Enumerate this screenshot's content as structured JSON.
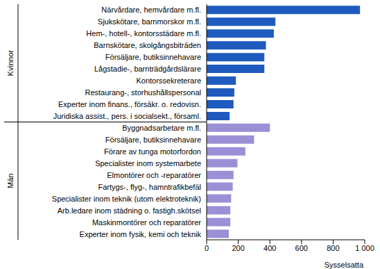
{
  "chart_data": {
    "type": "bar",
    "orientation": "horizontal",
    "stacked": true,
    "x_label": "Sysselsatta",
    "categories": [
      "Närvårdare, hemvårdare m.fl.",
      "Sjukskötare, barnmorskor m.fl.",
      "Hem-, hotell-, kontorsstädare m.fl.",
      "Barnskötare, skolgångsbiträden",
      "Försäljare, butiksinnehavare",
      "Lågstadie-, barnträdgårdslärare",
      "Kontorssekreterare",
      "Restaurang-, storhushållspersonal",
      "Experter inom finans., försäkr. o. redovisn.",
      "Juridiska assist., pers. i socialsekt., församl.",
      "Byggnadsarbetare m.fl.",
      "Försäljare, butiksinnehavare",
      "Förare av tunga motorfordon",
      "Specialister inom systemarbete",
      "Elmontörer och -reparatörer",
      "Fartygs-, flyg-, hamntrafikbefäl",
      "Specialister inom teknik (utom elektroteknik)",
      "Arb.ledare inom städning o. fastigh.skötsel",
      "Maskinmontörer och reparatörer",
      "Experter inom fysik, kemi och teknik"
    ],
    "series": [
      {
        "name": "Kvinnor",
        "color": "#1f5bbf",
        "values": [
          970,
          435,
          425,
          375,
          365,
          365,
          185,
          175,
          170,
          145,
          null,
          null,
          null,
          null,
          null,
          null,
          null,
          null,
          null,
          null
        ]
      },
      {
        "name": "Män",
        "color": "#9b8fd6",
        "values": [
          null,
          null,
          null,
          null,
          null,
          null,
          null,
          null,
          null,
          null,
          400,
          300,
          245,
          195,
          170,
          165,
          155,
          150,
          150,
          140
        ]
      }
    ],
    "xlim": [
      0,
      1000
    ],
    "xticks": [
      0,
      200,
      400,
      600,
      800,
      {
        "value": 1000,
        "label": "1 000"
      }
    ]
  }
}
